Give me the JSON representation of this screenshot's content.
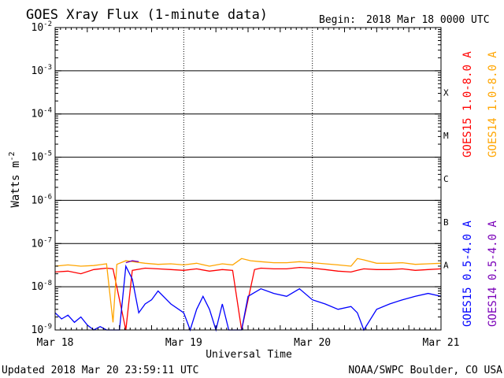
{
  "header": {
    "title": "GOES Xray Flux (1-minute data)",
    "begin_label": "Begin:",
    "begin_value": "2018 Mar 18 0000 UTC"
  },
  "footer": {
    "updated": "Updated 2018 Mar 20 23:59:11 UTC",
    "source": "NOAA/SWPC Boulder, CO USA"
  },
  "chart_data": {
    "type": "line",
    "title": "GOES Xray Flux (1-minute data)",
    "xlabel": "Universal Time",
    "ylabel": "Watts m",
    "ylabel_superscript": "-2",
    "y_scale": "log",
    "ylim": [
      1e-09,
      0.01
    ],
    "y_ticks": [
      {
        "base": "10",
        "exp": "-9",
        "value": 1e-09
      },
      {
        "base": "10",
        "exp": "-8",
        "value": 1e-08
      },
      {
        "base": "10",
        "exp": "-7",
        "value": 1e-07
      },
      {
        "base": "10",
        "exp": "-6",
        "value": 1e-06
      },
      {
        "base": "10",
        "exp": "-5",
        "value": 1e-05
      },
      {
        "base": "10",
        "exp": "-4",
        "value": 0.0001
      },
      {
        "base": "10",
        "exp": "-3",
        "value": 0.001
      },
      {
        "base": "10",
        "exp": "-2",
        "value": 0.01
      }
    ],
    "x_ticks": [
      "Mar 18",
      "Mar 19",
      "Mar 20",
      "Mar 21"
    ],
    "xlim_days": [
      0,
      3
    ],
    "flare_classes": [
      {
        "label": "A",
        "value": 3.16e-08
      },
      {
        "label": "B",
        "value": 3.16e-07
      },
      {
        "label": "C",
        "value": 3.16e-06
      },
      {
        "label": "M",
        "value": 3.16e-05
      },
      {
        "label": "X",
        "value": 0.000316
      }
    ],
    "grid": true,
    "series": [
      {
        "name": "GOES15 1.0-8.0 A",
        "color": "#ff0000",
        "x": [
          0.0,
          0.1,
          0.2,
          0.3,
          0.4,
          0.45,
          0.55,
          0.6,
          0.7,
          0.8,
          0.9,
          1.0,
          1.1,
          1.2,
          1.3,
          1.38,
          1.45,
          1.55,
          1.6,
          1.7,
          1.8,
          1.9,
          2.0,
          2.1,
          2.2,
          2.3,
          2.35,
          2.4,
          2.5,
          2.6,
          2.7,
          2.8,
          2.9,
          3.0
        ],
        "y": [
          2.2e-08,
          2.3e-08,
          2e-08,
          2.5e-08,
          2.7e-08,
          2.6e-08,
          1e-09,
          2.4e-08,
          2.7e-08,
          2.6e-08,
          2.5e-08,
          2.4e-08,
          2.6e-08,
          2.3e-08,
          2.5e-08,
          2.4e-08,
          1e-09,
          2.5e-08,
          2.7e-08,
          2.6e-08,
          2.6e-08,
          2.8e-08,
          2.7e-08,
          2.5e-08,
          2.3e-08,
          2.2e-08,
          2.4e-08,
          2.6e-08,
          2.5e-08,
          2.5e-08,
          2.6e-08,
          2.4e-08,
          2.5e-08,
          2.6e-08
        ]
      },
      {
        "name": "GOES14 1.0-8.0 A",
        "color": "#ffa500",
        "x": [
          0.0,
          0.1,
          0.2,
          0.3,
          0.4,
          0.45,
          0.48,
          0.55,
          0.7,
          0.8,
          0.9,
          1.0,
          1.1,
          1.2,
          1.3,
          1.38,
          1.45,
          1.52,
          1.6,
          1.7,
          1.8,
          1.9,
          2.0,
          2.1,
          2.2,
          2.3,
          2.35,
          2.4,
          2.5,
          2.6,
          2.7,
          2.8,
          2.9,
          3.0
        ],
        "y": [
          3e-08,
          3.2e-08,
          3e-08,
          3.1e-08,
          3.4e-08,
          1.5e-09,
          3.3e-08,
          4e-08,
          3.5e-08,
          3.3e-08,
          3.4e-08,
          3.2e-08,
          3.5e-08,
          3e-08,
          3.4e-08,
          3.2e-08,
          4.5e-08,
          4e-08,
          3.8e-08,
          3.6e-08,
          3.6e-08,
          3.8e-08,
          3.6e-08,
          3.4e-08,
          3.2e-08,
          3e-08,
          4.5e-08,
          4.2e-08,
          3.5e-08,
          3.5e-08,
          3.6e-08,
          3.3e-08,
          3.4e-08,
          3.5e-08
        ]
      },
      {
        "name": "GOES15 0.5-4.0 A",
        "color": "#0000ff",
        "x": [
          0.0,
          0.05,
          0.1,
          0.15,
          0.2,
          0.25,
          0.3,
          0.35,
          0.4,
          0.5,
          0.55,
          0.6,
          0.65,
          0.7,
          0.75,
          0.8,
          0.9,
          1.0,
          1.05,
          1.1,
          1.15,
          1.2,
          1.25,
          1.3,
          1.35,
          1.4,
          1.45,
          1.5,
          1.6,
          1.7,
          1.8,
          1.9,
          2.0,
          2.1,
          2.2,
          2.3,
          2.35,
          2.4,
          2.5,
          2.6,
          2.7,
          2.8,
          2.9,
          3.0
        ],
        "y": [
          2.5e-09,
          1.8e-09,
          2.2e-09,
          1.5e-09,
          2e-09,
          1.3e-09,
          1e-09,
          1.2e-09,
          1e-09,
          1e-09,
          3e-08,
          1.5e-08,
          2.5e-09,
          4e-09,
          5e-09,
          8e-09,
          4e-09,
          2.5e-09,
          1e-09,
          3e-09,
          6e-09,
          3e-09,
          1e-09,
          4e-09,
          1e-09,
          1e-09,
          1e-09,
          6e-09,
          9e-09,
          7e-09,
          6e-09,
          9e-09,
          5e-09,
          4e-09,
          3e-09,
          3.5e-09,
          2.5e-09,
          1e-09,
          3e-09,
          4e-09,
          5e-09,
          6e-09,
          7e-09,
          6e-09
        ]
      },
      {
        "name": "GOES14 0.5-4.0 A",
        "color": "#7a00b8",
        "x": [
          0.55,
          0.6,
          0.65
        ],
        "y": [
          3.6e-08,
          4e-08,
          3.8e-08
        ]
      }
    ]
  }
}
